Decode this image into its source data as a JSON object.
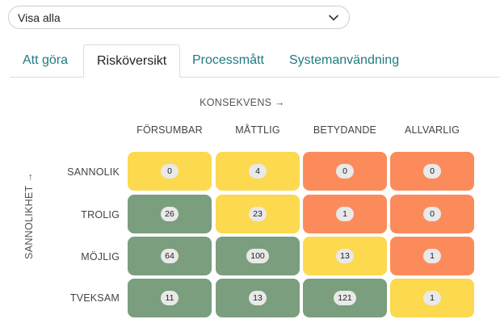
{
  "filter": {
    "selected": "Visa alla"
  },
  "tabs": [
    {
      "label": "Att göra",
      "active": false
    },
    {
      "label": "Risköversikt",
      "active": true
    },
    {
      "label": "Processmått",
      "active": false
    },
    {
      "label": "Systemanvändning",
      "active": false
    }
  ],
  "matrix": {
    "x_axis_label": "KONSEKVENS →",
    "y_axis_label": "SANNOLIKHET →",
    "columns": [
      "FÖRSUMBAR",
      "MÅTTLIG",
      "BETYDANDE",
      "ALLVARLIG"
    ],
    "rows": [
      {
        "label": "SANNOLIK",
        "values": [
          "0",
          "4",
          "0",
          "0"
        ],
        "levels": [
          "yellow",
          "yellow",
          "orange",
          "orange"
        ]
      },
      {
        "label": "TROLIG",
        "values": [
          "26",
          "23",
          "1",
          "0"
        ],
        "levels": [
          "green",
          "yellow",
          "orange",
          "orange"
        ]
      },
      {
        "label": "MÖJLIG",
        "values": [
          "64",
          "100",
          "13",
          "1"
        ],
        "levels": [
          "green",
          "green",
          "yellow",
          "orange"
        ]
      },
      {
        "label": "TVEKSAM",
        "values": [
          "11",
          "13",
          "121",
          "1"
        ],
        "levels": [
          "green",
          "green",
          "green",
          "yellow"
        ]
      }
    ],
    "colors": {
      "green": "#7a9e7e",
      "yellow": "#fcd94f",
      "orange": "#fc8b5c",
      "tab_link": "#1f7a82"
    }
  }
}
